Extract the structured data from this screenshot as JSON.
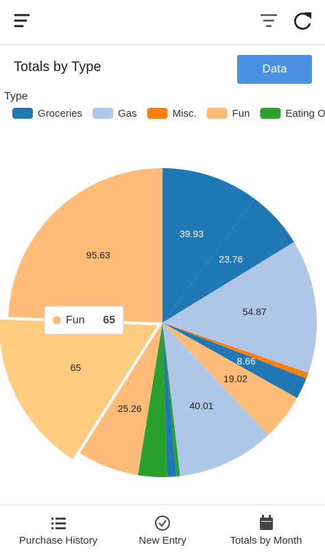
{
  "page": {
    "title": "Totals by Type",
    "button": "Data"
  },
  "chart_data": {
    "type": "pie",
    "legend_title": "Type",
    "legend": [
      {
        "name": "Groceries",
        "color": "#1f77b4"
      },
      {
        "name": "Gas",
        "color": "#aec7e8"
      },
      {
        "name": "Misc.",
        "color": "#ff7f0e"
      },
      {
        "name": "Fun",
        "color": "#ffbb78"
      },
      {
        "name": "Eating Out",
        "color": "#2ca02c"
      }
    ],
    "categories": [
      "Groceries",
      "Groceries",
      "Gas",
      "Misc.",
      "Groceries",
      "Fun",
      "Gas",
      "Eating Out",
      "Groceries",
      "Eating Out",
      "Fun",
      "Fun",
      "Fun"
    ],
    "values": [
      39.93,
      23.76,
      54.87,
      2.5,
      8.66,
      19.02,
      40.01,
      1.5,
      3.6,
      12,
      25.26,
      65,
      95.63
    ],
    "value_labels": [
      "39.93",
      "23.76",
      "54.87",
      null,
      "8.66",
      "19.02",
      "40.01",
      null,
      null,
      null,
      "25.26",
      "65",
      "95.63"
    ],
    "highlight": 11,
    "highlight_color": "#ffcc80"
  },
  "nav": [
    "Purchase History",
    "New Entry",
    "Totals by Month"
  ]
}
